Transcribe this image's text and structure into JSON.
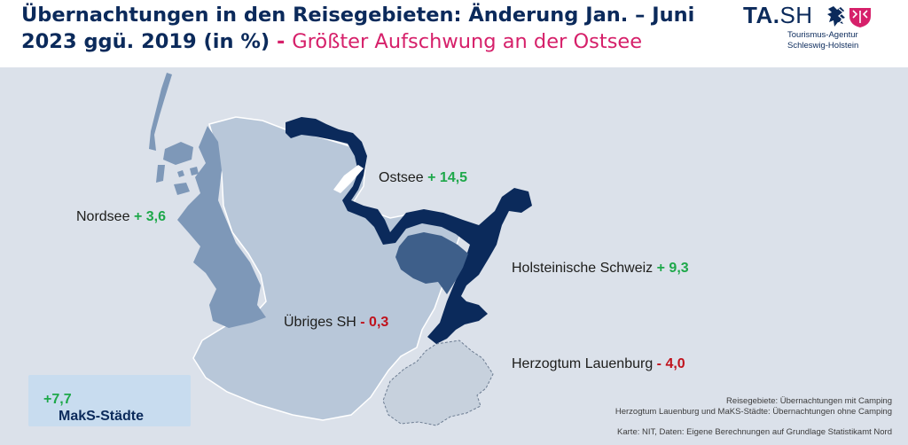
{
  "title": {
    "line1": "Übernachtungen in den Reisegebieten: Änderung Jan. – Juni",
    "line2_main": "2023 ggü. 2019 (in %)",
    "separator": "-",
    "subtitle": "Größter Aufschwung an der Ostsee"
  },
  "logo": {
    "brand_part1": "TA.",
    "brand_part2": "SH",
    "tagline1": "Tourismus-Agentur",
    "tagline2": "Schleswig-Holstein",
    "crest_icon": "sh-coat-of-arms-icon"
  },
  "colors": {
    "ostsee": "#0b2a5b",
    "holstein_schweiz": "#3e5f8a",
    "nordsee": "#7e98b8",
    "uebriges_sh": "#b8c7d9",
    "lauenburg": "#c7d1dd",
    "map_background": "#dbe1ea",
    "positive": "#1ea84a",
    "negative": "#c0121c",
    "subtitle_accent": "#d6206a"
  },
  "regions": {
    "ostsee": {
      "name": "Ostsee",
      "value": "+ 14,5"
    },
    "nordsee": {
      "name": "Nordsee",
      "value": "+ 3,6"
    },
    "holstein_schweiz": {
      "name": "Holsteinische Schweiz",
      "value": "+ 9,3"
    },
    "uebriges_sh": {
      "name": "Übriges SH",
      "value": "- 0,3"
    },
    "lauenburg": {
      "name": "Herzogtum Lauenburg",
      "value": "- 4,0"
    }
  },
  "maks": {
    "name": "MakS-Städte",
    "value": "+7,7"
  },
  "notes": {
    "line1": "Reisegebiete: Übernachtungen mit Camping",
    "line2": "Herzogtum Lauenburg und MaKS-Städte: Übernachtungen ohne Camping",
    "source": "Karte: NIT, Daten: Eigene Berechnungen auf Grundlage Statistikamt Nord"
  }
}
